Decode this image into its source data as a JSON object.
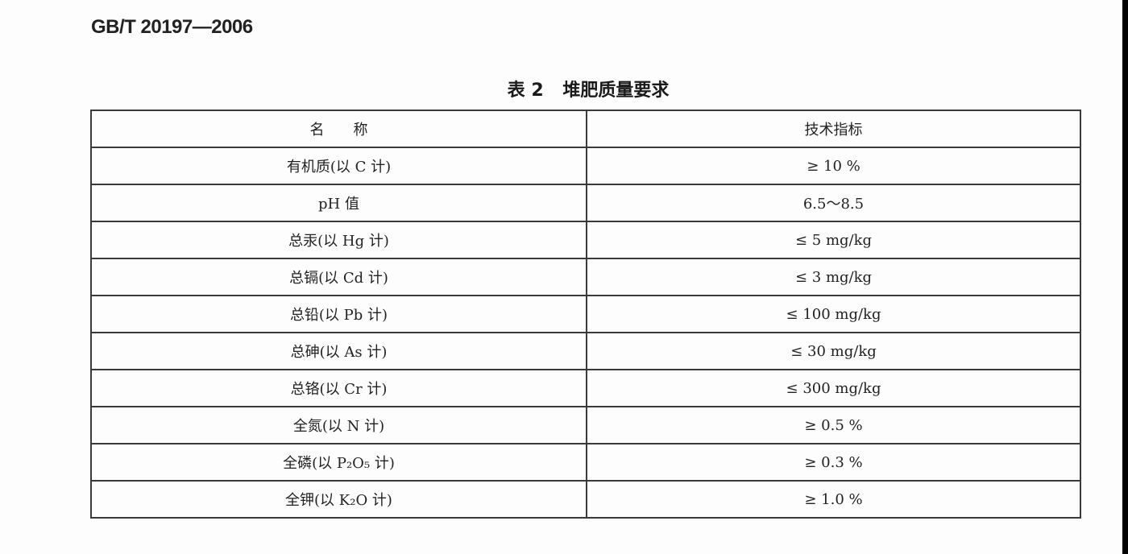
{
  "header": {
    "standard_number": "GB/T 20197—2006"
  },
  "table": {
    "caption_number": "表 2",
    "caption_title": "堆肥质量要求",
    "columns": [
      "名　　称",
      "技术指标"
    ],
    "rows": [
      [
        "有机质(以 C 计)",
        "≥ 10 %"
      ],
      [
        "pH 值",
        "6.5～8.5"
      ],
      [
        "总汞(以 Hg 计)",
        "≤ 5 mg/kg"
      ],
      [
        "总镉(以 Cd 计)",
        "≤ 3 mg/kg"
      ],
      [
        "总铅(以 Pb 计)",
        "≤ 100 mg/kg"
      ],
      [
        "总砷(以 As 计)",
        "≤ 30 mg/kg"
      ],
      [
        "总铬(以 Cr 计)",
        "≤ 300 mg/kg"
      ],
      [
        "全氮(以 N 计)",
        "≥ 0.5 %"
      ],
      [
        "全磷(以 P₂O₅ 计)",
        "≥ 0.3 %"
      ],
      [
        "全钾(以 K₂O 计)",
        "≥ 1.0 %"
      ]
    ]
  }
}
